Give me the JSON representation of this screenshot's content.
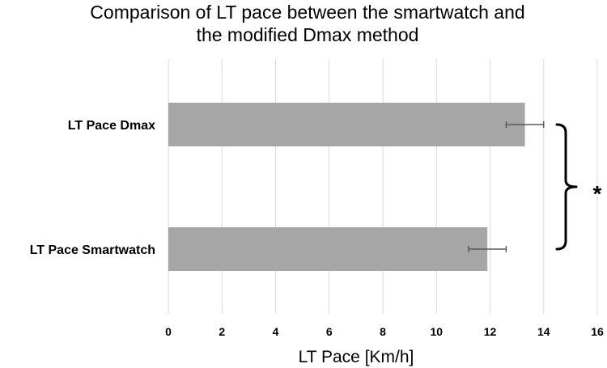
{
  "chart_data": {
    "type": "bar",
    "orientation": "horizontal",
    "title": "Comparison of LT pace between the smartwatch and the modified Dmax method",
    "title_lines": [
      "Comparison of LT pace between the smartwatch and",
      "the modified Dmax method"
    ],
    "xlabel": "LT Pace [Km/h]",
    "ylabel": "",
    "categories": [
      "LT Pace Dmax",
      "LT Pace Smartwatch"
    ],
    "values": [
      13.3,
      11.9
    ],
    "error_bars": [
      0.7,
      0.7
    ],
    "xlim": [
      0,
      16
    ],
    "x_ticks": [
      "0",
      "2",
      "4",
      "6",
      "8",
      "10",
      "12",
      "14",
      "16"
    ],
    "grid": "vertical",
    "annotation": {
      "text": "*",
      "spans": [
        "LT Pace Dmax",
        "LT Pace Smartwatch"
      ]
    },
    "colors": {
      "bar": "#a6a6a6",
      "grid": "#d9d9d9",
      "error_bar": "#595959",
      "bracket": "#000000"
    }
  }
}
